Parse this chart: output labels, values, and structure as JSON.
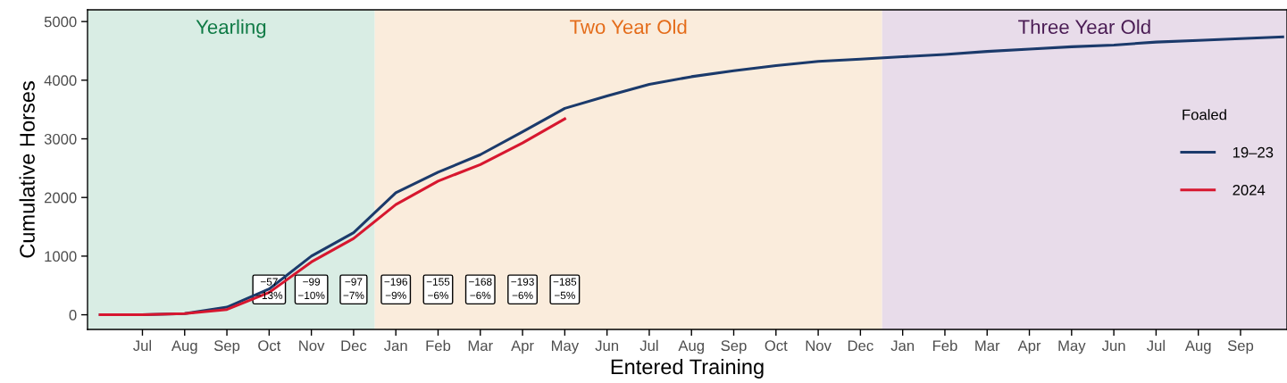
{
  "chart_data": {
    "type": "line",
    "xlabel": "Entered Training",
    "ylabel": "Cumulative Horses",
    "legend_title": "Foaled",
    "categories": [
      null,
      "Jul",
      "Aug",
      "Sep",
      "Oct",
      "Nov",
      "Dec",
      "Jan",
      "Feb",
      "Mar",
      "Apr",
      "May",
      "Jun",
      "Jul",
      "Aug",
      "Sep",
      "Oct",
      "Nov",
      "Dec",
      "Jan",
      "Feb",
      "Mar",
      "Apr",
      "May",
      "Jun",
      "Jul",
      "Aug",
      "Sep",
      null
    ],
    "series": [
      {
        "name": "19–23",
        "color": "#1b3a6b",
        "values": [
          0,
          0,
          20,
          130,
          440,
          1000,
          1400,
          2080,
          2430,
          2730,
          3120,
          3520,
          3730,
          3930,
          4060,
          4160,
          4250,
          4320,
          4360,
          4400,
          4440,
          4490,
          4530,
          4570,
          4600,
          4650,
          4680,
          4710,
          4740
        ]
      },
      {
        "name": "2024",
        "color": "#d7172f",
        "values": [
          0,
          0,
          20,
          90,
          380,
          900,
          1300,
          1880,
          2280,
          2560,
          2930,
          3340,
          null,
          null,
          null,
          null,
          null,
          null,
          null,
          null,
          null,
          null,
          null,
          null,
          null,
          null,
          null,
          null,
          null
        ]
      }
    ],
    "ylim": [
      -250,
      5200
    ],
    "yticks": [
      0,
      1000,
      2000,
      3000,
      4000,
      5000
    ],
    "grid": false,
    "legend": "right",
    "marker": "none",
    "line_style": "solid",
    "annotations": [
      "Yearling",
      "Two Year Old",
      "Three Year Old",
      {
        "text": "−57\n−13%",
        "x": "Oct"
      },
      {
        "text": "−99\n−10%",
        "x": "Nov"
      },
      {
        "text": "−97\n−7%",
        "x": "Dec"
      },
      {
        "text": "−196\n−9%",
        "x": "Jan"
      },
      {
        "text": "−155\n−6%",
        "x": "Feb"
      },
      {
        "text": "−168\n−6%",
        "x": "Mar"
      },
      {
        "text": "−193\n−6%",
        "x": "Apr"
      },
      {
        "text": "−185\n−5%",
        "x": "May"
      }
    ]
  }
}
